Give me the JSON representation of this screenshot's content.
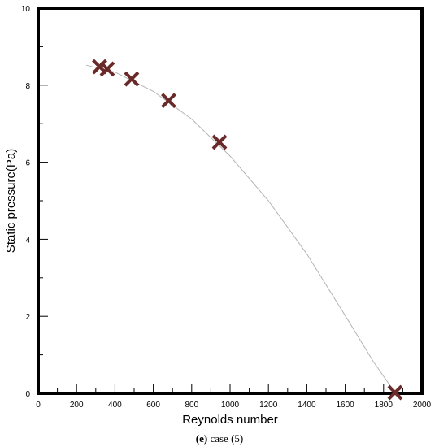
{
  "chart_data": {
    "type": "scatter",
    "xlabel": "Reynolds number",
    "ylabel": "Static pressure(Pa)",
    "xlim": [
      0,
      2000
    ],
    "ylim": [
      0,
      10
    ],
    "xticks": [
      0,
      200,
      400,
      600,
      800,
      1000,
      1200,
      1400,
      1600,
      1800,
      2000
    ],
    "yticks": [
      0,
      2,
      4,
      6,
      8,
      10
    ],
    "grid": false,
    "marker": "x",
    "marker_color": "#6b2a2a",
    "fit_line_color": "#b4b4b4",
    "points": [
      {
        "x": 320,
        "y": 8.48
      },
      {
        "x": 360,
        "y": 8.42
      },
      {
        "x": 487,
        "y": 8.16
      },
      {
        "x": 680,
        "y": 7.6
      },
      {
        "x": 945,
        "y": 6.52
      },
      {
        "x": 1860,
        "y": 0.02
      }
    ],
    "fit_curve": [
      {
        "x": 250,
        "y": 8.52
      },
      {
        "x": 400,
        "y": 8.34
      },
      {
        "x": 600,
        "y": 7.84
      },
      {
        "x": 800,
        "y": 7.12
      },
      {
        "x": 1000,
        "y": 6.16
      },
      {
        "x": 1200,
        "y": 5.0
      },
      {
        "x": 1400,
        "y": 3.62
      },
      {
        "x": 1600,
        "y": 2.02
      },
      {
        "x": 1750,
        "y": 0.8
      },
      {
        "x": 1860,
        "y": 0.02
      }
    ]
  },
  "caption": {
    "label": "(e)",
    "text": " case (5)"
  }
}
